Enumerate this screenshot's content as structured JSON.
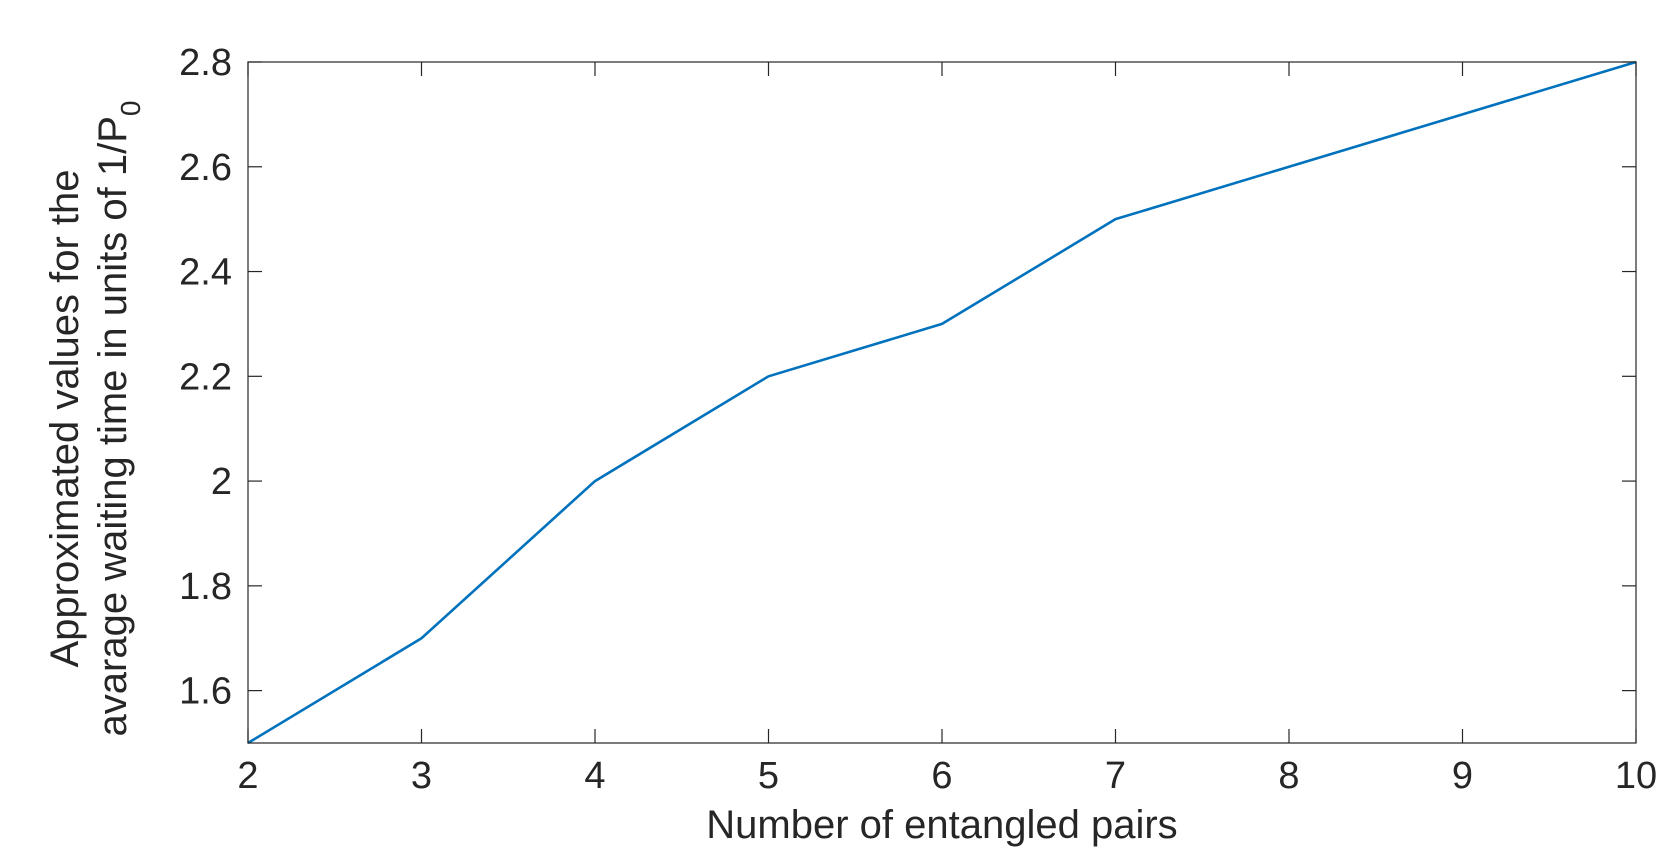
{
  "chart_data": {
    "type": "line",
    "xlabel": "Number of entangled pairs",
    "ylabel_line1": "Approximated values for the",
    "ylabel_line2": "avarage waiting time in units of 1/P",
    "ylabel_subscript": "0",
    "xlim": [
      2,
      10
    ],
    "ylim": [
      1.5,
      2.8
    ],
    "xticks": [
      2,
      3,
      4,
      5,
      6,
      7,
      8,
      9,
      10
    ],
    "xtick_labels": [
      "2",
      "3",
      "4",
      "5",
      "6",
      "7",
      "8",
      "9",
      "10"
    ],
    "yticks": [
      1.6,
      1.8,
      2.0,
      2.2,
      2.4,
      2.6,
      2.8
    ],
    "ytick_labels": [
      "1.6",
      "1.8",
      "2",
      "2.2",
      "2.4",
      "2.6",
      "2.8"
    ],
    "grid": false,
    "series": [
      {
        "color": "#0072BD",
        "x": [
          2,
          3,
          4,
          5,
          6,
          7,
          8,
          9,
          10
        ],
        "y": [
          1.5,
          1.7,
          2.0,
          2.2,
          2.3,
          2.5,
          2.6,
          2.7,
          2.8
        ]
      }
    ]
  }
}
